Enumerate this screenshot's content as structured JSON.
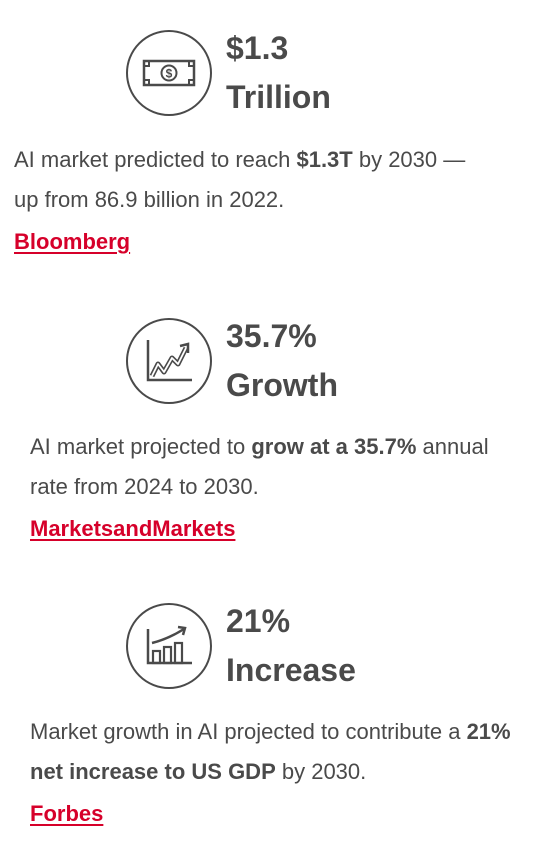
{
  "stats": [
    {
      "icon": "money-bill-icon",
      "title_line1": "$1.3",
      "title_line2": "Trillion",
      "desc_pre": "AI market predicted to reach ",
      "desc_bold": "$1.3T",
      "desc_post": " by 2030 — up from 86.9 billion in 2022.",
      "source": "Bloomberg"
    },
    {
      "icon": "growth-chart-icon",
      "title_line1": "35.7%",
      "title_line2": "Growth",
      "desc_pre": "AI market projected to ",
      "desc_bold": "grow at a 35.7%",
      "desc_post": " annual rate from 2024 to 2030.",
      "source": "MarketsandMarkets"
    },
    {
      "icon": "bar-chart-rising-icon",
      "title_line1": "21%",
      "title_line2": "Increase",
      "desc_pre": "Market growth in AI projected to contribute a ",
      "desc_bold": "21% net increase to US GDP",
      "desc_post": " by 2030.",
      "source": "Forbes"
    }
  ],
  "colors": {
    "text": "#4a4a4a",
    "link": "#d6002a"
  }
}
